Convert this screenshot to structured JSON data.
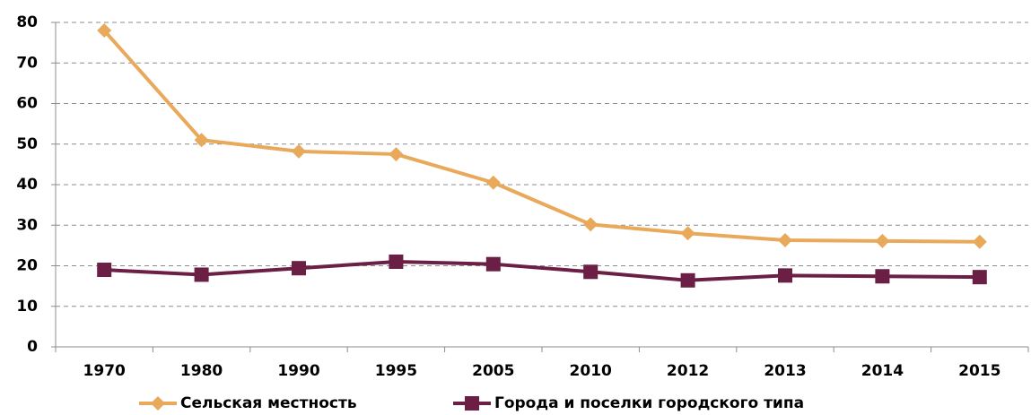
{
  "chart_data": {
    "type": "line",
    "categories": [
      "1970",
      "1980",
      "1990",
      "1995",
      "2005",
      "2010",
      "2012",
      "2013",
      "2014",
      "2015"
    ],
    "series": [
      {
        "name": "Сельская местность",
        "color": "#e8a95a",
        "marker": "diamond",
        "values": [
          78,
          51,
          48.2,
          47.5,
          40.5,
          30.2,
          28,
          26.3,
          26.1,
          25.9
        ]
      },
      {
        "name": "Города и поселки городского типа",
        "color": "#6b1f45",
        "marker": "square",
        "values": [
          19,
          17.8,
          19.4,
          21,
          20.4,
          18.5,
          16.4,
          17.6,
          17.4,
          17.2
        ]
      }
    ],
    "ylim": [
      0,
      80
    ],
    "yticks": [
      0,
      10,
      20,
      30,
      40,
      50,
      60,
      70,
      80
    ],
    "grid": true,
    "legend": "bottom"
  }
}
